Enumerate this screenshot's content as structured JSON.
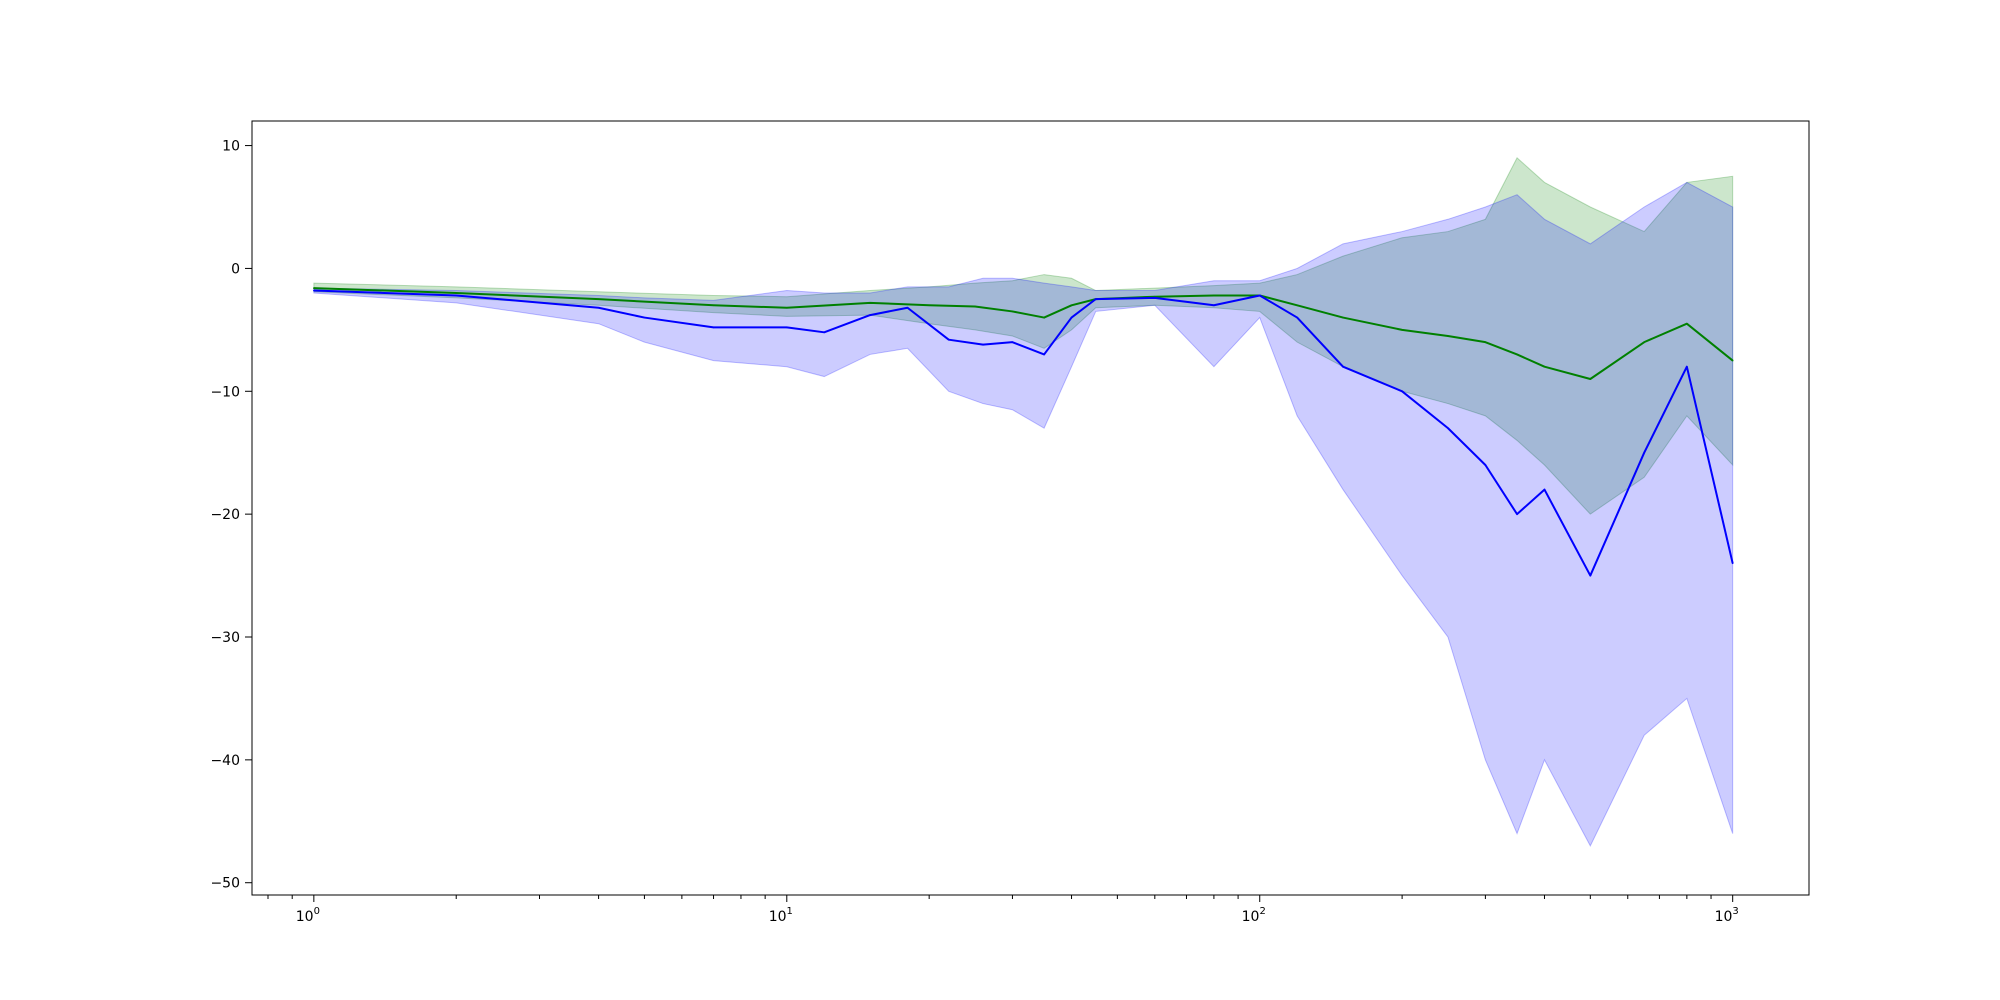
{
  "chart_data": {
    "type": "line",
    "title": "",
    "xlabel": "",
    "ylabel": "",
    "xscale": "log",
    "xlim": [
      0.74,
      1450
    ],
    "ylim": [
      -51,
      12
    ],
    "grid": false,
    "legend": "none",
    "x_ticks": [
      {
        "value": 1,
        "base": "10",
        "exp": "0"
      },
      {
        "value": 10,
        "base": "10",
        "exp": "1"
      },
      {
        "value": 100,
        "base": "10",
        "exp": "2"
      },
      {
        "value": 1000,
        "base": "10",
        "exp": "3"
      }
    ],
    "y_ticks": [
      {
        "value": 10,
        "label": "10"
      },
      {
        "value": 0,
        "label": "0"
      },
      {
        "value": -10,
        "label": "−10"
      },
      {
        "value": -20,
        "label": "−20"
      },
      {
        "value": -30,
        "label": "−30"
      },
      {
        "value": -40,
        "label": "−40"
      },
      {
        "value": -50,
        "label": "−50"
      }
    ],
    "series": [
      {
        "color": "#008000",
        "band_color": "#008000",
        "band_opacity": 0.2,
        "points": [
          {
            "x": 1,
            "y": -1.6,
            "lo": -1.9,
            "hi": -1.2
          },
          {
            "x": 2,
            "y": -2.0,
            "lo": -2.4,
            "hi": -1.5
          },
          {
            "x": 4,
            "y": -2.5,
            "lo": -3.0,
            "hi": -1.9
          },
          {
            "x": 7,
            "y": -3.0,
            "lo": -3.6,
            "hi": -2.2
          },
          {
            "x": 10,
            "y": -3.2,
            "lo": -3.9,
            "hi": -2.3
          },
          {
            "x": 15,
            "y": -2.8,
            "lo": -3.8,
            "hi": -1.8
          },
          {
            "x": 20,
            "y": -3.0,
            "lo": -4.5,
            "hi": -1.5
          },
          {
            "x": 25,
            "y": -3.1,
            "lo": -5.0,
            "hi": -1.2
          },
          {
            "x": 30,
            "y": -3.5,
            "lo": -5.5,
            "hi": -1.0
          },
          {
            "x": 35,
            "y": -4.0,
            "lo": -6.5,
            "hi": -0.5
          },
          {
            "x": 40,
            "y": -3.0,
            "lo": -5.0,
            "hi": -0.8
          },
          {
            "x": 45,
            "y": -2.5,
            "lo": -3.2,
            "hi": -1.8
          },
          {
            "x": 60,
            "y": -2.3,
            "lo": -3.0,
            "hi": -1.6
          },
          {
            "x": 80,
            "y": -2.2,
            "lo": -3.2,
            "hi": -1.4
          },
          {
            "x": 100,
            "y": -2.2,
            "lo": -3.5,
            "hi": -1.2
          },
          {
            "x": 120,
            "y": -3.0,
            "lo": -6.0,
            "hi": -0.5
          },
          {
            "x": 150,
            "y": -4.0,
            "lo": -8.0,
            "hi": 1.0
          },
          {
            "x": 200,
            "y": -5.0,
            "lo": -10.0,
            "hi": 2.5
          },
          {
            "x": 250,
            "y": -5.5,
            "lo": -11.0,
            "hi": 3.0
          },
          {
            "x": 300,
            "y": -6.0,
            "lo": -12.0,
            "hi": 4.0
          },
          {
            "x": 350,
            "y": -7.0,
            "lo": -14.0,
            "hi": 9.0
          },
          {
            "x": 400,
            "y": -8.0,
            "lo": -16.0,
            "hi": 7.0
          },
          {
            "x": 500,
            "y": -9.0,
            "lo": -20.0,
            "hi": 5.0
          },
          {
            "x": 650,
            "y": -6.0,
            "lo": -17.0,
            "hi": 3.0
          },
          {
            "x": 800,
            "y": -4.5,
            "lo": -12.0,
            "hi": 7.0
          },
          {
            "x": 1000,
            "y": -7.5,
            "lo": -16.0,
            "hi": 7.5
          }
        ]
      },
      {
        "color": "#0000ff",
        "band_color": "#0000ff",
        "band_opacity": 0.2,
        "points": [
          {
            "x": 1,
            "y": -1.8,
            "lo": -2.0,
            "hi": -1.6
          },
          {
            "x": 2,
            "y": -2.2,
            "lo": -2.8,
            "hi": -1.8
          },
          {
            "x": 4,
            "y": -3.2,
            "lo": -4.5,
            "hi": -2.2
          },
          {
            "x": 5,
            "y": -4.0,
            "lo": -6.0,
            "hi": -2.4
          },
          {
            "x": 7,
            "y": -4.8,
            "lo": -7.5,
            "hi": -2.6
          },
          {
            "x": 10,
            "y": -4.8,
            "lo": -8.0,
            "hi": -1.8
          },
          {
            "x": 12,
            "y": -5.2,
            "lo": -8.8,
            "hi": -2.0
          },
          {
            "x": 15,
            "y": -3.8,
            "lo": -7.0,
            "hi": -2.0
          },
          {
            "x": 18,
            "y": -3.2,
            "lo": -6.5,
            "hi": -1.5
          },
          {
            "x": 22,
            "y": -5.8,
            "lo": -10.0,
            "hi": -1.5
          },
          {
            "x": 26,
            "y": -6.2,
            "lo": -11.0,
            "hi": -0.8
          },
          {
            "x": 30,
            "y": -6.0,
            "lo": -11.5,
            "hi": -0.8
          },
          {
            "x": 35,
            "y": -7.0,
            "lo": -13.0,
            "hi": -1.2
          },
          {
            "x": 40,
            "y": -4.0,
            "lo": -8.0,
            "hi": -1.5
          },
          {
            "x": 45,
            "y": -2.5,
            "lo": -3.5,
            "hi": -1.8
          },
          {
            "x": 60,
            "y": -2.4,
            "lo": -3.0,
            "hi": -1.8
          },
          {
            "x": 80,
            "y": -3.0,
            "lo": -8.0,
            "hi": -1.0
          },
          {
            "x": 100,
            "y": -2.2,
            "lo": -4.0,
            "hi": -1.0
          },
          {
            "x": 120,
            "y": -4.0,
            "lo": -12.0,
            "hi": 0.0
          },
          {
            "x": 150,
            "y": -8.0,
            "lo": -18.0,
            "hi": 2.0
          },
          {
            "x": 200,
            "y": -10.0,
            "lo": -25.0,
            "hi": 3.0
          },
          {
            "x": 250,
            "y": -13.0,
            "lo": -30.0,
            "hi": 4.0
          },
          {
            "x": 300,
            "y": -16.0,
            "lo": -40.0,
            "hi": 5.0
          },
          {
            "x": 350,
            "y": -20.0,
            "lo": -46.0,
            "hi": 6.0
          },
          {
            "x": 400,
            "y": -18.0,
            "lo": -40.0,
            "hi": 4.0
          },
          {
            "x": 500,
            "y": -25.0,
            "lo": -47.0,
            "hi": 2.0
          },
          {
            "x": 650,
            "y": -15.0,
            "lo": -38.0,
            "hi": 5.0
          },
          {
            "x": 800,
            "y": -8.0,
            "lo": -35.0,
            "hi": 7.0
          },
          {
            "x": 1000,
            "y": -24.0,
            "lo": -46.0,
            "hi": 5.0
          }
        ]
      }
    ]
  }
}
